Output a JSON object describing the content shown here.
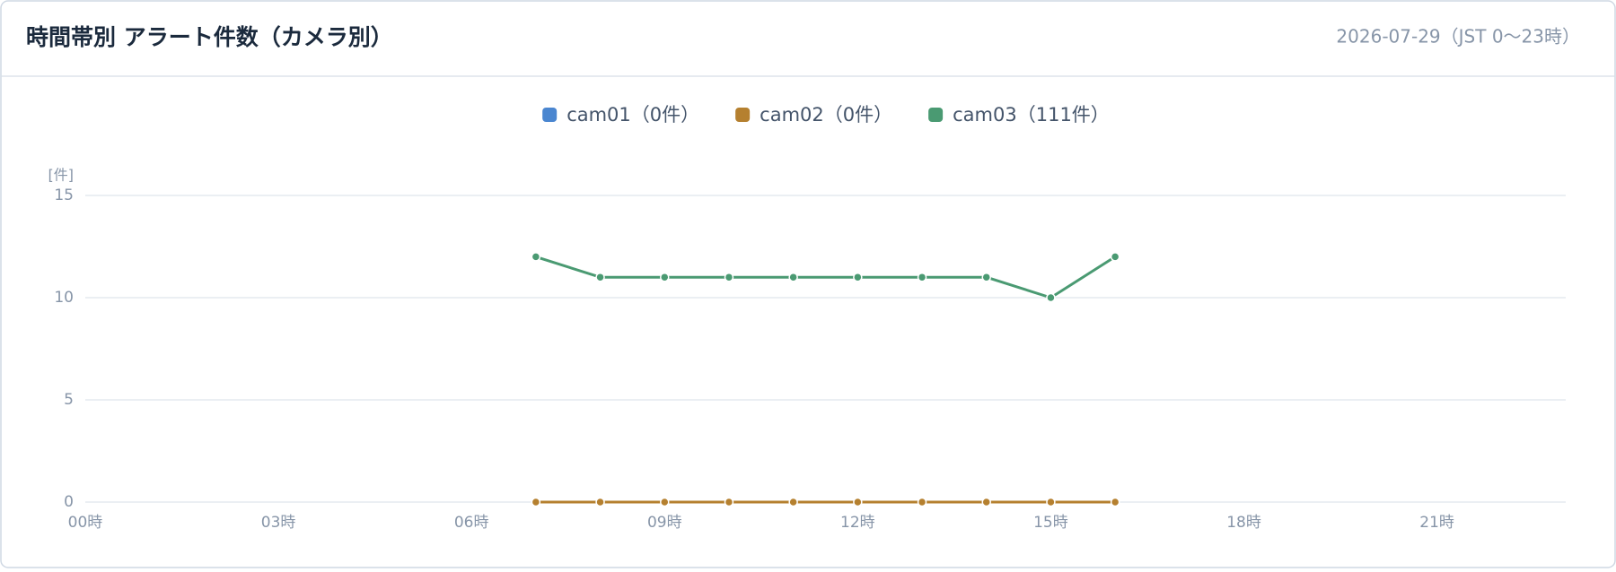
{
  "chart_data": {
    "type": "line",
    "title": "時間帯別 アラート件数（カメラ別）",
    "subtitle": "2026-07-29（JST 0〜23時）",
    "y_label": "[件]",
    "categories": [
      "00時",
      null,
      null,
      "03時",
      null,
      null,
      "06時",
      null,
      null,
      "09時",
      null,
      null,
      "12時",
      null,
      null,
      "15時",
      null,
      null,
      "18時",
      null,
      null,
      "21時",
      null,
      null
    ],
    "series": [
      {
        "name": "cam01（0件）",
        "color": "#4a86d0",
        "values": [
          null,
          null,
          null,
          null,
          null,
          null,
          null,
          0,
          0,
          0,
          0,
          0,
          0,
          0,
          0,
          0,
          0,
          null,
          null,
          null,
          null,
          null,
          null,
          null
        ]
      },
      {
        "name": "cam02（0件）",
        "color": "#b5802f",
        "values": [
          null,
          null,
          null,
          null,
          null,
          null,
          null,
          0,
          0,
          0,
          0,
          0,
          0,
          0,
          0,
          0,
          0,
          null,
          null,
          null,
          null,
          null,
          null,
          null
        ]
      },
      {
        "name": "cam03（111件）",
        "color": "#4a9a72",
        "values": [
          null,
          null,
          null,
          null,
          null,
          null,
          null,
          12,
          11,
          11,
          11,
          11,
          11,
          11,
          11,
          10,
          12,
          null,
          null,
          null,
          null,
          null,
          null,
          null
        ]
      }
    ],
    "ylim": [
      0,
      15
    ],
    "yticks": [
      0,
      5,
      10,
      15
    ],
    "grid": true
  }
}
